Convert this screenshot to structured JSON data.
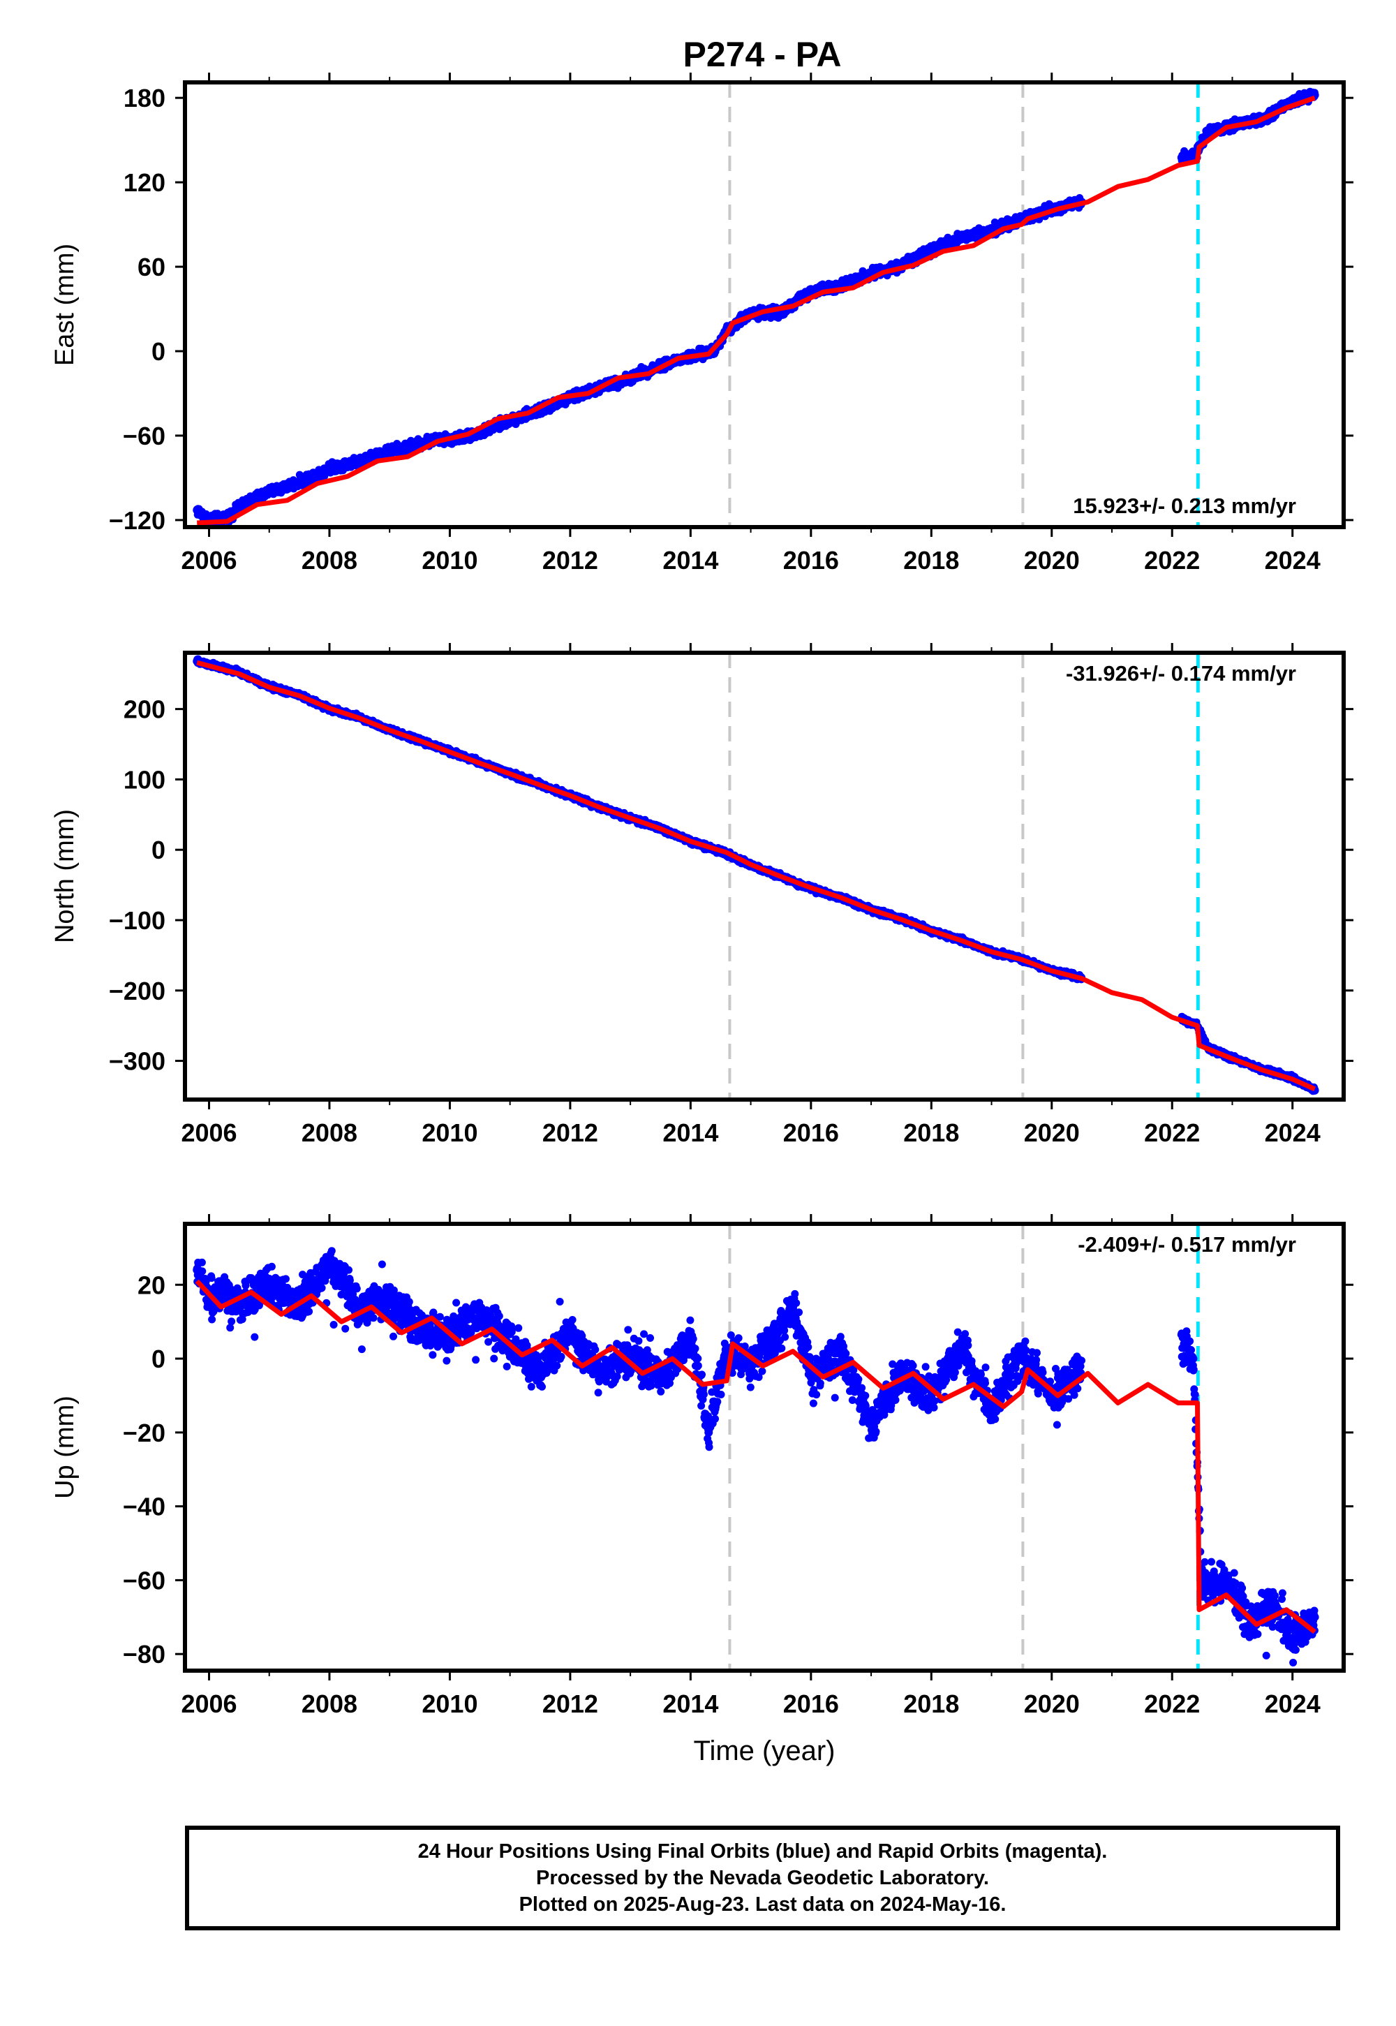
{
  "chart_data": [
    {
      "type": "scatter",
      "title": "P274 - PA",
      "xlabel": "",
      "ylabel": "East (mm)",
      "xlim": [
        2005.6,
        2024.85
      ],
      "ylim": [
        -125,
        191
      ],
      "xticks": [
        2006,
        2008,
        2010,
        2012,
        2014,
        2016,
        2018,
        2020,
        2022,
        2024
      ],
      "yticks": [
        -120,
        -60,
        0,
        60,
        120,
        180
      ],
      "rate_label": "15.923+/- 0.213 mm/yr",
      "rate_position": "bottom-right",
      "vertical_lines": [
        {
          "x": 2014.65,
          "color": "#c8c8c8",
          "style": "dashed"
        },
        {
          "x": 2019.52,
          "color": "#c8c8c8",
          "style": "dashed"
        },
        {
          "x": 2022.43,
          "color": "#00e5ff",
          "style": "dashed"
        }
      ],
      "series": [
        {
          "type": "scatter",
          "color": "#0000ff",
          "x": [
            2005.8,
            2006.0,
            2006.3,
            2006.6,
            2007.0,
            2007.5,
            2008.0,
            2008.5,
            2009.0,
            2009.5,
            2009.7,
            2010.0,
            2010.5,
            2011.0,
            2011.5,
            2012.0,
            2012.5,
            2013.0,
            2013.5,
            2014.0,
            2014.4,
            2014.6,
            2015.0,
            2015.5,
            2016.0,
            2016.5,
            2017.0,
            2017.5,
            2018.0,
            2018.5,
            2019.0,
            2019.5,
            2020.0,
            2020.5,
            2022.2,
            2022.4,
            2022.6,
            2023.0,
            2023.5,
            2024.0,
            2024.37
          ],
          "y": [
            -113,
            -120,
            -118,
            -108,
            -100,
            -93,
            -83,
            -78,
            -71,
            -66,
            -63,
            -63,
            -58,
            -49,
            -42,
            -33,
            -26,
            -19,
            -10,
            -4,
            0,
            15,
            27,
            28,
            42,
            47,
            55,
            61,
            71,
            81,
            86,
            93,
            101,
            106,
            138,
            140,
            155,
            160,
            165,
            177,
            182
          ]
        },
        {
          "type": "line",
          "color": "#ff0000",
          "x": [
            2005.8,
            2006.3,
            2006.8,
            2007.3,
            2007.8,
            2008.3,
            2008.8,
            2009.3,
            2009.8,
            2010.3,
            2010.8,
            2011.3,
            2011.8,
            2012.3,
            2012.8,
            2013.3,
            2013.8,
            2014.3,
            2014.6,
            2014.7,
            2015.2,
            2015.7,
            2016.2,
            2016.7,
            2017.2,
            2017.7,
            2018.2,
            2018.7,
            2019.2,
            2019.5,
            2019.6,
            2020.1,
            2020.6,
            2021.1,
            2021.6,
            2022.1,
            2022.42,
            2022.45,
            2022.9,
            2023.4,
            2023.9,
            2024.37
          ],
          "y": [
            -122,
            -121,
            -109,
            -106,
            -94,
            -89,
            -78,
            -75,
            -64,
            -59,
            -48,
            -44,
            -33,
            -30,
            -19,
            -16,
            -5,
            -2,
            12,
            20,
            28,
            32,
            42,
            45,
            56,
            61,
            71,
            75,
            87,
            90,
            94,
            101,
            106,
            117,
            122,
            132,
            135,
            145,
            159,
            163,
            173,
            180
          ]
        }
      ]
    },
    {
      "type": "scatter",
      "title": "",
      "xlabel": "",
      "ylabel": "North (mm)",
      "xlim": [
        2005.6,
        2024.85
      ],
      "ylim": [
        -355,
        280
      ],
      "xticks": [
        2006,
        2008,
        2010,
        2012,
        2014,
        2016,
        2018,
        2020,
        2022,
        2024
      ],
      "yticks": [
        -300,
        -200,
        -100,
        0,
        100,
        200
      ],
      "rate_label": "-31.926+/- 0.174 mm/yr",
      "rate_position": "top-right",
      "vertical_lines": [
        {
          "x": 2014.65,
          "color": "#c8c8c8",
          "style": "dashed"
        },
        {
          "x": 2019.52,
          "color": "#c8c8c8",
          "style": "dashed"
        },
        {
          "x": 2022.43,
          "color": "#00e5ff",
          "style": "dashed"
        }
      ],
      "series": [
        {
          "type": "scatter",
          "color": "#0000ff",
          "x": [
            2005.8,
            2006.5,
            2007.0,
            2007.5,
            2008.0,
            2008.5,
            2009.0,
            2009.5,
            2010.0,
            2010.5,
            2011.0,
            2011.5,
            2012.0,
            2012.5,
            2013.0,
            2013.5,
            2014.0,
            2014.6,
            2015.0,
            2015.5,
            2016.0,
            2016.5,
            2017.0,
            2017.5,
            2018.0,
            2018.5,
            2019.0,
            2019.5,
            2020.0,
            2020.4,
            2022.2,
            2022.4,
            2022.6,
            2023.0,
            2023.5,
            2024.0,
            2024.37
          ],
          "y": [
            268,
            252,
            232,
            220,
            200,
            188,
            170,
            155,
            140,
            124,
            108,
            93,
            77,
            60,
            45,
            30,
            12,
            -5,
            -22,
            -38,
            -55,
            -68,
            -85,
            -98,
            -115,
            -128,
            -145,
            -155,
            -172,
            -180,
            -243,
            -248,
            -282,
            -296,
            -312,
            -325,
            -342
          ]
        },
        {
          "type": "line",
          "color": "#ff0000",
          "x": [
            2005.8,
            2006.5,
            2007.0,
            2007.5,
            2008.0,
            2008.5,
            2009.0,
            2009.5,
            2010.0,
            2010.5,
            2011.0,
            2011.5,
            2012.0,
            2012.5,
            2013.0,
            2013.5,
            2014.0,
            2014.6,
            2015.0,
            2015.5,
            2016.0,
            2016.5,
            2017.0,
            2017.5,
            2018.0,
            2018.5,
            2019.0,
            2019.5,
            2020.0,
            2020.5,
            2021.0,
            2021.5,
            2022.0,
            2022.42,
            2022.45,
            2023.0,
            2023.5,
            2024.0,
            2024.37
          ],
          "y": [
            266,
            250,
            231,
            219,
            201,
            187,
            170,
            155,
            139,
            123,
            108,
            92,
            77,
            60,
            45,
            30,
            12,
            -4,
            -21,
            -38,
            -54,
            -68,
            -85,
            -99,
            -115,
            -129,
            -145,
            -156,
            -172,
            -183,
            -203,
            -213,
            -238,
            -250,
            -278,
            -297,
            -313,
            -326,
            -340
          ]
        }
      ]
    },
    {
      "type": "scatter",
      "title": "",
      "xlabel": "Time (year)",
      "ylabel": "Up (mm)",
      "xlim": [
        2005.6,
        2024.85
      ],
      "ylim": [
        -84.5,
        36.5
      ],
      "xticks": [
        2006,
        2008,
        2010,
        2012,
        2014,
        2016,
        2018,
        2020,
        2022,
        2024
      ],
      "yticks": [
        -80,
        -60,
        -40,
        -20,
        0,
        20
      ],
      "rate_label": "-2.409+/- 0.517 mm/yr",
      "rate_position": "top-right",
      "vertical_lines": [
        {
          "x": 2014.65,
          "color": "#c8c8c8",
          "style": "dashed"
        },
        {
          "x": 2019.52,
          "color": "#c8c8c8",
          "style": "dashed"
        },
        {
          "x": 2022.43,
          "color": "#00e5ff",
          "style": "dashed"
        }
      ],
      "series": [
        {
          "type": "scatter",
          "color": "#0000ff",
          "x": [
            2005.8,
            2006.0,
            2006.5,
            2007.0,
            2007.5,
            2008.0,
            2008.5,
            2009.0,
            2009.5,
            2010.0,
            2010.5,
            2011.0,
            2011.5,
            2012.0,
            2012.5,
            2013.0,
            2013.5,
            2014.0,
            2014.3,
            2014.6,
            2015.0,
            2015.5,
            2015.7,
            2016.0,
            2016.5,
            2017.0,
            2017.5,
            2018.0,
            2018.5,
            2019.0,
            2019.5,
            2020.0,
            2020.4,
            2022.2,
            2022.35,
            2022.5,
            2022.9,
            2023.3,
            2023.7,
            2024.0,
            2024.37
          ],
          "y": [
            24,
            17,
            15,
            20,
            14,
            26,
            13,
            16,
            8,
            6,
            12,
            4,
            -3,
            7,
            -4,
            1,
            -5,
            6,
            -20,
            3,
            -2,
            8,
            14,
            -5,
            2,
            -18,
            -4,
            -10,
            3,
            -14,
            1,
            -10,
            -4,
            4,
            0,
            -62,
            -60,
            -72,
            -66,
            -76,
            -70
          ]
        },
        {
          "type": "line",
          "color": "#ff0000",
          "x": [
            2005.8,
            2006.2,
            2006.7,
            2007.2,
            2007.7,
            2008.2,
            2008.7,
            2009.2,
            2009.7,
            2010.2,
            2010.7,
            2011.2,
            2011.7,
            2012.2,
            2012.7,
            2013.2,
            2013.7,
            2014.2,
            2014.6,
            2014.7,
            2015.2,
            2015.7,
            2016.2,
            2016.7,
            2017.2,
            2017.7,
            2018.2,
            2018.7,
            2019.2,
            2019.5,
            2019.6,
            2020.1,
            2020.6,
            2021.1,
            2021.6,
            2022.1,
            2022.42,
            2022.45,
            2022.9,
            2023.4,
            2023.9,
            2024.37
          ],
          "y": [
            21,
            14,
            18,
            12,
            17,
            10,
            14,
            7,
            11,
            4,
            8,
            1,
            5,
            -2,
            3,
            -4,
            0,
            -7,
            -6,
            4,
            -2,
            2,
            -5,
            -1,
            -8,
            -4,
            -11,
            -7,
            -13,
            -9,
            -3,
            -10,
            -4,
            -12,
            -7,
            -12,
            -12,
            -68,
            -64,
            -72,
            -68,
            -74
          ]
        }
      ]
    }
  ],
  "caption": [
    "24 Hour Positions Using Final Orbits (blue) and Rapid Orbits (magenta).",
    "Processed by the Nevada Geodetic Laboratory.",
    "Plotted on 2025-Aug-23. Last data on 2024-May-16."
  ]
}
